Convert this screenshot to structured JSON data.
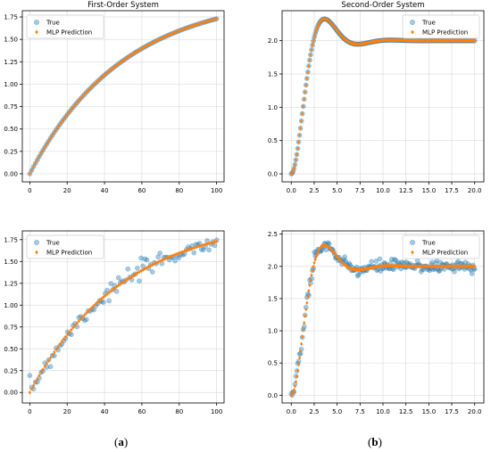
{
  "figure": {
    "caption_a_label": "a",
    "caption_b_label": "b"
  },
  "colors": {
    "true_series": "#1f77b4",
    "prediction_series": "#ff7f0e",
    "grid": "#dddddd",
    "axis": "#000000"
  },
  "chart_data": [
    {
      "id": "first_order_clean",
      "type": "scatter",
      "title": "First-Order System",
      "xlabel": "",
      "ylabel": "",
      "xlim": [
        -4,
        104
      ],
      "ylim": [
        -0.09,
        1.82
      ],
      "xticks": [
        0,
        20,
        40,
        60,
        80,
        100
      ],
      "xtick_labels": [
        "0",
        "20",
        "40",
        "60",
        "80",
        "100"
      ],
      "yticks": [
        0.0,
        0.25,
        0.5,
        0.75,
        1.0,
        1.25,
        1.5,
        1.75
      ],
      "ytick_labels": [
        "0.00",
        "0.25",
        "0.50",
        "0.75",
        "1.00",
        "1.25",
        "1.50",
        "1.75"
      ],
      "grid": true,
      "legend_position": "upper left",
      "series": [
        {
          "name": "True",
          "marker": "circle",
          "model": "first_order",
          "params": {
            "K": 2.0,
            "tau": 50,
            "x_start": 0,
            "x_end": 100,
            "n": 100
          },
          "noise": 0
        },
        {
          "name": "MLP Prediction",
          "marker": "diamond",
          "model": "first_order",
          "params": {
            "K": 2.0,
            "tau": 50,
            "x_start": 0,
            "x_end": 100,
            "n": 100
          },
          "noise": 0
        }
      ]
    },
    {
      "id": "second_order_clean",
      "type": "scatter",
      "title": "Second-Order System",
      "xlabel": "",
      "ylabel": "",
      "xlim": [
        -1.0,
        21.0
      ],
      "ylim": [
        -0.12,
        2.45
      ],
      "xticks": [
        0.0,
        2.5,
        5.0,
        7.5,
        10.0,
        12.5,
        15.0,
        17.5,
        20.0
      ],
      "xtick_labels": [
        "0.0",
        "2.5",
        "5.0",
        "7.5",
        "10.0",
        "12.5",
        "15.0",
        "17.5",
        "20.0"
      ],
      "yticks": [
        0.0,
        0.5,
        1.0,
        1.5,
        2.0
      ],
      "ytick_labels": [
        "0.0",
        "0.5",
        "1.0",
        "1.5",
        "2.0"
      ],
      "grid": true,
      "legend_position": "upper right",
      "series": [
        {
          "name": "True",
          "marker": "circle",
          "model": "second_order",
          "params": {
            "K": 2.0,
            "zeta": 0.5,
            "wn": 1.0,
            "x_start": 0,
            "x_end": 20,
            "n": 200
          },
          "noise": 0
        },
        {
          "name": "MLP Prediction",
          "marker": "diamond",
          "model": "second_order",
          "params": {
            "K": 2.0,
            "zeta": 0.5,
            "wn": 1.0,
            "x_start": 0,
            "x_end": 20,
            "n": 200
          },
          "noise": 0
        }
      ]
    },
    {
      "id": "first_order_noisy",
      "type": "scatter",
      "title": "",
      "xlabel": "",
      "ylabel": "",
      "xlim": [
        -4,
        104
      ],
      "ylim": [
        -0.12,
        1.85
      ],
      "xticks": [
        0,
        20,
        40,
        60,
        80,
        100
      ],
      "xtick_labels": [
        "0",
        "20",
        "40",
        "60",
        "80",
        "100"
      ],
      "yticks": [
        0.0,
        0.25,
        0.5,
        0.75,
        1.0,
        1.25,
        1.5,
        1.75
      ],
      "ytick_labels": [
        "0.00",
        "0.25",
        "0.50",
        "0.75",
        "1.00",
        "1.25",
        "1.50",
        "1.75"
      ],
      "grid": true,
      "legend_position": "upper left",
      "series": [
        {
          "name": "True",
          "marker": "circle",
          "model": "first_order",
          "params": {
            "K": 2.0,
            "tau": 50,
            "x_start": 0,
            "x_end": 100,
            "n": 100
          },
          "noise": 0.05
        },
        {
          "name": "MLP Prediction",
          "marker": "diamond",
          "model": "first_order",
          "params": {
            "K": 2.0,
            "tau": 50,
            "x_start": 0,
            "x_end": 100,
            "n": 100
          },
          "noise": 0
        }
      ]
    },
    {
      "id": "second_order_noisy",
      "type": "scatter",
      "title": "",
      "xlabel": "",
      "ylabel": "",
      "xlim": [
        -1.0,
        21.0
      ],
      "ylim": [
        -0.12,
        2.55
      ],
      "xticks": [
        0.0,
        2.5,
        5.0,
        7.5,
        10.0,
        12.5,
        15.0,
        17.5,
        20.0
      ],
      "xtick_labels": [
        "0.0",
        "2.5",
        "5.0",
        "7.5",
        "10.0",
        "12.5",
        "15.0",
        "17.5",
        "20.0"
      ],
      "yticks": [
        0.0,
        0.5,
        1.0,
        1.5,
        2.0,
        2.5
      ],
      "ytick_labels": [
        "0.0",
        "0.5",
        "1.0",
        "1.5",
        "2.0",
        "2.5"
      ],
      "grid": true,
      "legend_position": "upper right",
      "series": [
        {
          "name": "True",
          "marker": "circle",
          "model": "second_order",
          "params": {
            "K": 2.0,
            "zeta": 0.5,
            "wn": 1.0,
            "x_start": 0,
            "x_end": 20,
            "n": 200
          },
          "noise": 0.05
        },
        {
          "name": "MLP Prediction",
          "marker": "diamond",
          "model": "second_order",
          "params": {
            "K": 2.0,
            "zeta": 0.5,
            "wn": 1.0,
            "x_start": 0,
            "x_end": 20,
            "n": 200
          },
          "noise": 0
        }
      ]
    }
  ]
}
